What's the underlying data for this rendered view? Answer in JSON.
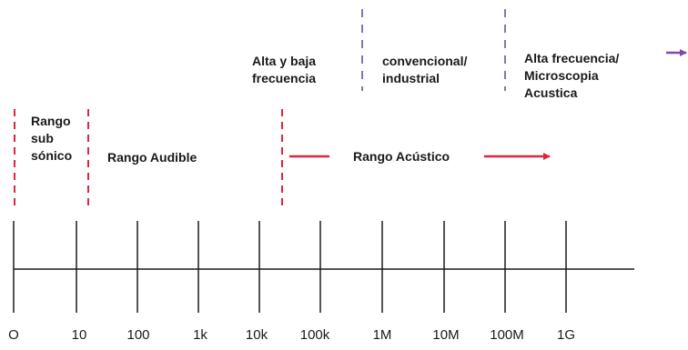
{
  "colors": {
    "red_boundary": "#e0243c",
    "purple_boundary": "#8a72b2",
    "arrow": "#e0243c",
    "purple_arrow": "#7a4ea8",
    "axis": "#1a1a1a"
  },
  "regions": {
    "infrasonic": "Rango\nsub\nsónico",
    "audible": "Rango Audible",
    "acoustic": "Rango Acústico"
  },
  "top_labels": {
    "high_low": "Alta y baja\nfrecuencia",
    "conventional": "convencional/\nindustrial",
    "microscopy": "Alta frecuencia/\nMicroscopia\nAcustica"
  },
  "ticks": [
    "O",
    "10",
    "100",
    "1k",
    "10k",
    "100k",
    "1M",
    "10M",
    "100M",
    "1G"
  ]
}
